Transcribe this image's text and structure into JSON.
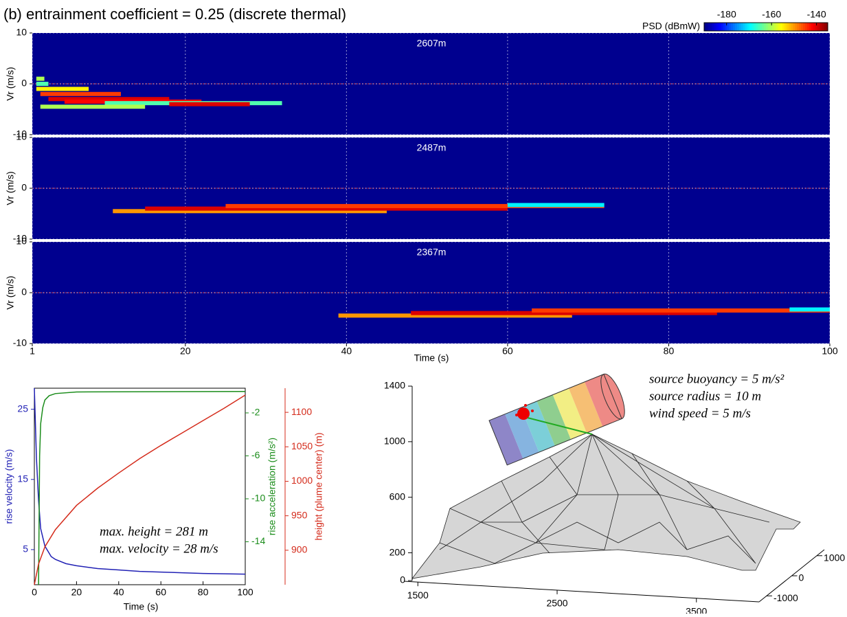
{
  "title": "(b) entrainment coefficient = 0.25 (discrete thermal)",
  "colorbar": {
    "label": "PSD (dBmW)",
    "lim": [
      -190,
      -135
    ],
    "ticks": [
      -180,
      -160,
      -140
    ]
  },
  "chart_data": [
    {
      "type": "heatmap",
      "label": "2607m",
      "ylabel": "Vr (m/s)",
      "xlim": [
        1,
        100
      ],
      "xticks": [
        1,
        20,
        40,
        60,
        80,
        100
      ],
      "ylim": [
        -10,
        10
      ],
      "yticks": [
        10,
        0,
        -10
      ],
      "grid": true,
      "t_start": [
        1.5,
        1.5,
        1.5,
        2,
        3,
        5,
        10,
        2,
        18
      ],
      "t_end": [
        2.5,
        3,
        8,
        12,
        18,
        22,
        32,
        15,
        28
      ],
      "vr": [
        1,
        0,
        -1,
        -2,
        -3,
        -3.5,
        -3.8,
        -4.5,
        -4
      ],
      "psd": [
        -160,
        -165,
        -155,
        -145,
        -140,
        -142,
        -165,
        -160,
        -140
      ]
    },
    {
      "type": "heatmap",
      "label": "2487m",
      "ylabel": "Vr (m/s)",
      "xlim": [
        1,
        100
      ],
      "xticks": [
        1,
        20,
        40,
        60,
        80,
        100
      ],
      "ylim": [
        -10,
        10
      ],
      "yticks": [
        10,
        0,
        -10
      ],
      "grid": true,
      "t_start": [
        11,
        15,
        25,
        60
      ],
      "t_end": [
        45,
        60,
        72,
        72
      ],
      "vr": [
        -4.5,
        -4,
        -3.5,
        -3.3
      ],
      "psd": [
        -150,
        -140,
        -145,
        -170
      ]
    },
    {
      "type": "heatmap",
      "label": "2367m",
      "ylabel": "Vr (m/s)",
      "xlabel": "Time (s)",
      "xlim": [
        1,
        100
      ],
      "xticks": [
        1,
        20,
        40,
        60,
        80,
        100
      ],
      "ylim": [
        -10,
        10
      ],
      "yticks": [
        10,
        0,
        -10
      ],
      "grid": true,
      "t_start": [
        39,
        48,
        63,
        95
      ],
      "t_end": [
        68,
        86,
        100,
        100
      ],
      "vr": [
        -4.5,
        -4,
        -3.5,
        -3.3
      ],
      "psd": [
        -150,
        -140,
        -145,
        -170
      ]
    },
    {
      "type": "line",
      "xlabel": "Time (s)",
      "ylabel": "rise velocity (m/s)",
      "y2label": "rise acceleration (m/s²)",
      "y3label": "height (plume center) (m)",
      "xlim": [
        0,
        100
      ],
      "xticks": [
        0,
        20,
        40,
        60,
        80,
        100
      ],
      "ylim": [
        0,
        28
      ],
      "yticks": [
        5,
        15,
        25
      ],
      "y2lim": [
        -18,
        0.3
      ],
      "y2ticks": [
        -2,
        -6,
        -10,
        -14
      ],
      "y3lim": [
        850,
        1135
      ],
      "y3ticks": [
        900,
        950,
        1000,
        1050,
        1100
      ],
      "annotations": [
        "max. height = 281 m",
        "max. velocity = 28 m/s"
      ],
      "series": [
        {
          "name": "rise velocity",
          "color": "#1f1fb4",
          "axis": "y",
          "x": [
            0,
            1,
            2,
            3,
            5,
            8,
            10,
            15,
            20,
            30,
            40,
            50,
            60,
            70,
            80,
            90,
            100
          ],
          "values": [
            28,
            18,
            12,
            8,
            5.5,
            4,
            3.6,
            3,
            2.7,
            2.3,
            2.1,
            1.9,
            1.8,
            1.7,
            1.6,
            1.55,
            1.5
          ]
        },
        {
          "name": "rise acceleration",
          "color": "#1a8c1a",
          "axis": "y2",
          "x": [
            2,
            2.5,
            3,
            4,
            5,
            7,
            10,
            20,
            100
          ],
          "values": [
            -18,
            -6,
            -3,
            -1.5,
            -0.8,
            -0.4,
            -0.2,
            -0.05,
            0
          ]
        },
        {
          "name": "height",
          "color": "#d42a1a",
          "axis": "y3",
          "x": [
            0,
            2,
            5,
            10,
            20,
            30,
            40,
            50,
            60,
            70,
            80,
            90,
            100
          ],
          "values": [
            850,
            880,
            905,
            930,
            965,
            990,
            1012,
            1033,
            1052,
            1070,
            1088,
            1106,
            1125
          ]
        }
      ]
    },
    {
      "type": "surface3d",
      "zlim": [
        0,
        1400
      ],
      "zticks": [
        0,
        200,
        600,
        1000,
        1400
      ],
      "xlim": [
        1400,
        3950
      ],
      "xticks": [
        1500,
        2500,
        3500
      ],
      "ylim": [
        -1300,
        1300
      ],
      "yticks": [
        -1000,
        0,
        1000
      ],
      "annotations": [
        "source buoyancy = 5 m/s²",
        "source radius = 10 m",
        "wind speed = 5 m/s"
      ]
    }
  ]
}
